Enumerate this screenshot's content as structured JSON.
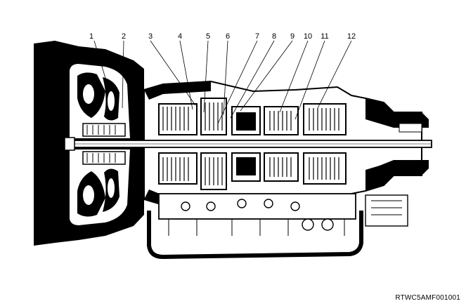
{
  "figure": {
    "code": "RTWC5AMF001001"
  },
  "callouts": [
    {
      "number": "1"
    },
    {
      "number": "2"
    },
    {
      "number": "3"
    },
    {
      "number": "4"
    },
    {
      "number": "5"
    },
    {
      "number": "6"
    },
    {
      "number": "7"
    },
    {
      "number": "8"
    },
    {
      "number": "9"
    },
    {
      "number": "10"
    },
    {
      "number": "11"
    },
    {
      "number": "12"
    }
  ],
  "colors": {
    "ink": "#000000",
    "paper": "#ffffff"
  }
}
